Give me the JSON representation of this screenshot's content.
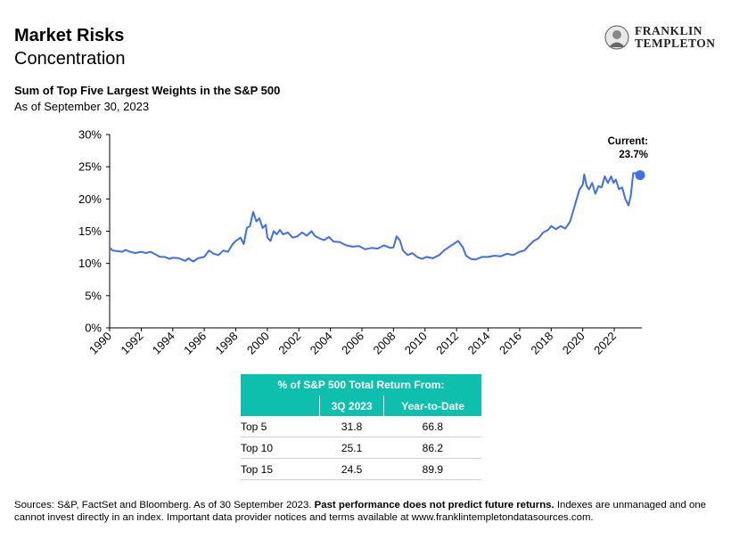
{
  "header": {
    "title": "Market Risks",
    "subtitle": "Concentration",
    "logo_line1": "FRANKLIN",
    "logo_line2": "TEMPLETON"
  },
  "chart_header": {
    "title": "Sum of Top Five Largest Weights in the S&P 500",
    "subtitle": "As of September 30, 2023"
  },
  "chart_data": {
    "type": "line",
    "title": "Sum of Top Five Largest Weights in the S&P 500",
    "ylim": [
      0,
      30
    ],
    "y_ticks": [
      "0%",
      "5%",
      "10%",
      "15%",
      "20%",
      "25%",
      "30%"
    ],
    "x_ticks": [
      "1990",
      "1992",
      "1994",
      "1996",
      "1998",
      "2000",
      "2002",
      "2004",
      "2006",
      "2008",
      "2010",
      "2012",
      "2014",
      "2016",
      "2018",
      "2020",
      "2022"
    ],
    "xlim": [
      1990,
      2023.75
    ],
    "series": [
      {
        "color": "#3f6fe0",
        "points": [
          [
            1990.0,
            12.4
          ],
          [
            1990.2,
            12.0
          ],
          [
            1990.5,
            11.9
          ],
          [
            1990.8,
            11.8
          ],
          [
            1991.0,
            12.1
          ],
          [
            1991.3,
            11.8
          ],
          [
            1991.6,
            11.6
          ],
          [
            1992.0,
            11.8
          ],
          [
            1992.3,
            11.6
          ],
          [
            1992.6,
            11.8
          ],
          [
            1992.9,
            11.4
          ],
          [
            1993.2,
            11.0
          ],
          [
            1993.5,
            11.0
          ],
          [
            1993.8,
            10.7
          ],
          [
            1994.0,
            10.9
          ],
          [
            1994.4,
            10.8
          ],
          [
            1994.8,
            10.4
          ],
          [
            1995.0,
            10.8
          ],
          [
            1995.3,
            10.3
          ],
          [
            1995.6,
            10.8
          ],
          [
            1996.0,
            11.0
          ],
          [
            1996.3,
            12.0
          ],
          [
            1996.6,
            11.5
          ],
          [
            1996.9,
            11.3
          ],
          [
            1997.2,
            12.0
          ],
          [
            1997.5,
            11.8
          ],
          [
            1997.8,
            13.0
          ],
          [
            1998.0,
            13.5
          ],
          [
            1998.3,
            14.0
          ],
          [
            1998.5,
            13.0
          ],
          [
            1998.7,
            15.5
          ],
          [
            1998.9,
            15.8
          ],
          [
            1999.1,
            18.0
          ],
          [
            1999.3,
            16.5
          ],
          [
            1999.5,
            17.0
          ],
          [
            1999.7,
            15.5
          ],
          [
            1999.9,
            16.0
          ],
          [
            2000.0,
            14.0
          ],
          [
            2000.2,
            13.5
          ],
          [
            2000.4,
            15.0
          ],
          [
            2000.6,
            14.5
          ],
          [
            2000.8,
            15.2
          ],
          [
            2001.0,
            14.5
          ],
          [
            2001.3,
            14.8
          ],
          [
            2001.6,
            14.0
          ],
          [
            2001.9,
            14.2
          ],
          [
            2002.2,
            14.8
          ],
          [
            2002.5,
            14.3
          ],
          [
            2002.8,
            15.0
          ],
          [
            2003.0,
            14.3
          ],
          [
            2003.3,
            13.9
          ],
          [
            2003.6,
            13.6
          ],
          [
            2003.9,
            14.1
          ],
          [
            2004.2,
            13.4
          ],
          [
            2004.6,
            13.3
          ],
          [
            2005.0,
            12.8
          ],
          [
            2005.4,
            12.6
          ],
          [
            2005.8,
            12.7
          ],
          [
            2006.2,
            12.2
          ],
          [
            2006.6,
            12.4
          ],
          [
            2007.0,
            12.3
          ],
          [
            2007.4,
            12.8
          ],
          [
            2007.8,
            12.4
          ],
          [
            2008.0,
            12.5
          ],
          [
            2008.2,
            14.2
          ],
          [
            2008.4,
            13.6
          ],
          [
            2008.6,
            12.0
          ],
          [
            2008.9,
            11.3
          ],
          [
            2009.2,
            11.6
          ],
          [
            2009.5,
            11.0
          ],
          [
            2009.8,
            10.7
          ],
          [
            2010.1,
            11.0
          ],
          [
            2010.5,
            10.8
          ],
          [
            2010.9,
            11.3
          ],
          [
            2011.2,
            12.0
          ],
          [
            2011.5,
            12.5
          ],
          [
            2011.8,
            13.0
          ],
          [
            2012.1,
            13.5
          ],
          [
            2012.4,
            12.5
          ],
          [
            2012.6,
            11.2
          ],
          [
            2012.9,
            10.7
          ],
          [
            2013.2,
            10.6
          ],
          [
            2013.6,
            11.0
          ],
          [
            2014.0,
            11.0
          ],
          [
            2014.4,
            11.2
          ],
          [
            2014.8,
            11.1
          ],
          [
            2015.2,
            11.5
          ],
          [
            2015.6,
            11.3
          ],
          [
            2016.0,
            11.8
          ],
          [
            2016.3,
            12.0
          ],
          [
            2016.6,
            12.8
          ],
          [
            2016.9,
            13.5
          ],
          [
            2017.2,
            13.9
          ],
          [
            2017.5,
            14.8
          ],
          [
            2017.8,
            15.2
          ],
          [
            2018.0,
            15.8
          ],
          [
            2018.3,
            15.3
          ],
          [
            2018.6,
            15.8
          ],
          [
            2018.9,
            15.4
          ],
          [
            2019.2,
            16.5
          ],
          [
            2019.5,
            19.0
          ],
          [
            2019.8,
            21.5
          ],
          [
            2020.0,
            22.2
          ],
          [
            2020.1,
            23.8
          ],
          [
            2020.25,
            22.0
          ],
          [
            2020.4,
            21.5
          ],
          [
            2020.6,
            22.5
          ],
          [
            2020.8,
            20.8
          ],
          [
            2021.0,
            22.0
          ],
          [
            2021.2,
            21.8
          ],
          [
            2021.4,
            23.5
          ],
          [
            2021.6,
            22.5
          ],
          [
            2021.8,
            23.5
          ],
          [
            2021.95,
            22.5
          ],
          [
            2022.1,
            23.0
          ],
          [
            2022.3,
            21.5
          ],
          [
            2022.5,
            21.8
          ],
          [
            2022.7,
            20.0
          ],
          [
            2022.9,
            19.0
          ],
          [
            2023.05,
            20.5
          ],
          [
            2023.2,
            24.0
          ],
          [
            2023.5,
            24.0
          ],
          [
            2023.75,
            23.7
          ]
        ]
      }
    ],
    "current_label_line1": "Current:",
    "current_label_line2": "23.7%",
    "current_value": 23.7
  },
  "returns_table": {
    "title": "% of S&P 500 Total Return From:",
    "columns": [
      "3Q 2023",
      "Year-to-Date"
    ],
    "rows": [
      {
        "label": "Top 5",
        "q3": "31.8",
        "ytd": "66.8"
      },
      {
        "label": "Top 10",
        "q3": "25.1",
        "ytd": "86.2"
      },
      {
        "label": "Top 15",
        "q3": "24.5",
        "ytd": "89.9"
      }
    ]
  },
  "footer": {
    "text_before": "Sources: S&P, FactSet and Bloomberg. As of 30 September 2023. ",
    "text_bold": "Past performance does not predict future returns.",
    "text_after": " Indexes are unmanaged and one cannot invest directly in an index. Important data provider notices and terms available at www.franklintempletondatasources.com."
  },
  "colors": {
    "line": "#3f6fe0",
    "table_header": "#0fbfad"
  }
}
